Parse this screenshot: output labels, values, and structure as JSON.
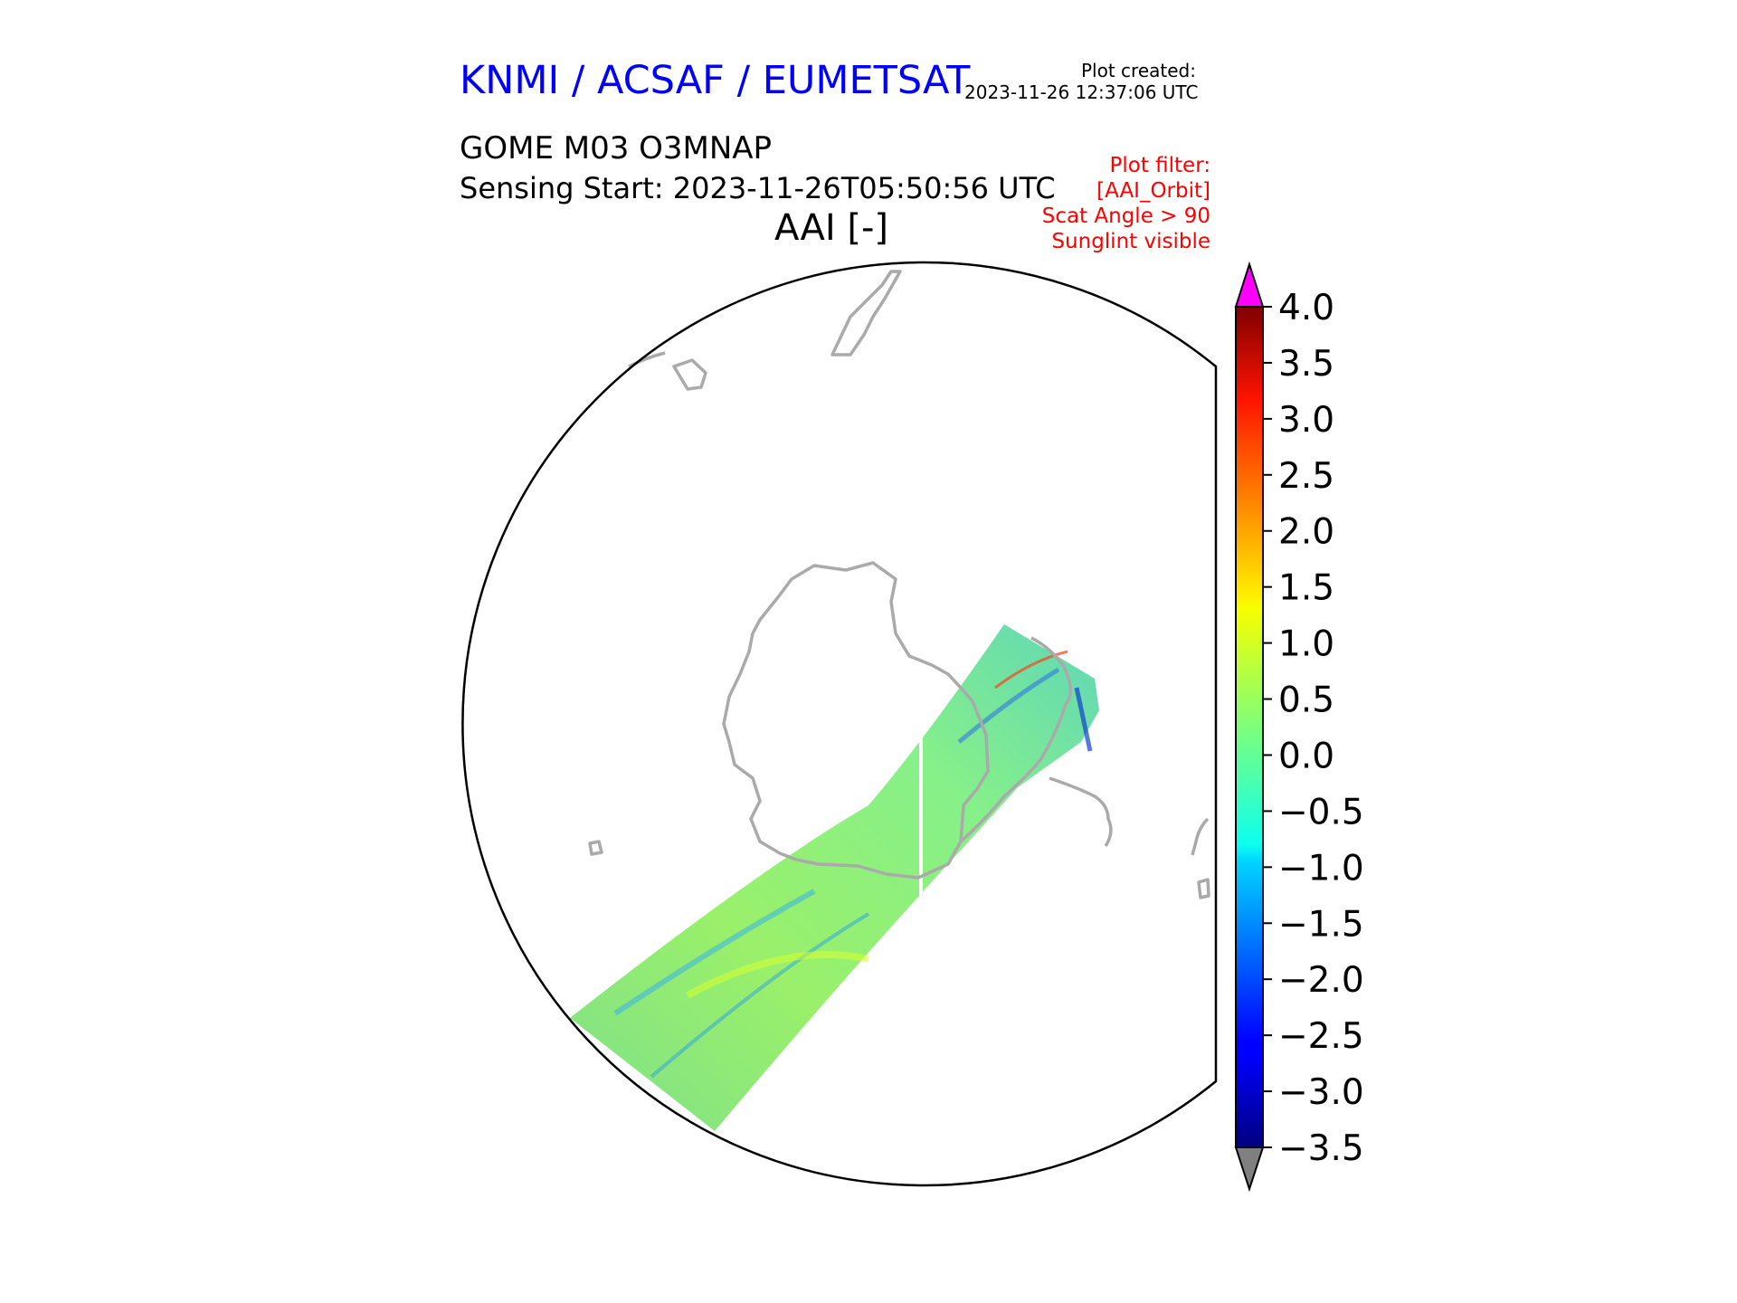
{
  "header": {
    "agency": "KNMI / ACSAF / EUMETSAT",
    "created_label": "Plot created:",
    "created_time": "2023-11-26 12:37:06 UTC"
  },
  "plot": {
    "product": "GOME M03 O3MNAP",
    "sensing_start": "Sensing Start: 2023-11-26T05:50:56 UTC",
    "variable_title": "AAI [-]"
  },
  "filters": [
    "Plot filter:",
    "[AAI_Orbit]",
    "Scat Angle > 90",
    "Sunglint visible"
  ],
  "colorbar": {
    "ticks": [
      "4.0",
      "3.5",
      "3.0",
      "2.5",
      "2.0",
      "1.5",
      "1.0",
      "0.5",
      "0.0",
      "−0.5",
      "−1.0",
      "−1.5",
      "−2.0",
      "−2.5",
      "−3.0",
      "−3.5"
    ],
    "tick_values": [
      4.0,
      3.5,
      3.0,
      2.5,
      2.0,
      1.5,
      1.0,
      0.5,
      0.0,
      -0.5,
      -1.0,
      -1.5,
      -2.0,
      -2.5,
      -3.0,
      -3.5
    ],
    "min": -3.5,
    "max": 4.0,
    "over_color": "#ff00ff",
    "under_color": "#808080"
  },
  "map": {
    "projection": "south-polar-stereographic",
    "coastline_color": "#aaaaaa",
    "swath_dominant_value_range": [
      -1.0,
      1.0
    ]
  }
}
